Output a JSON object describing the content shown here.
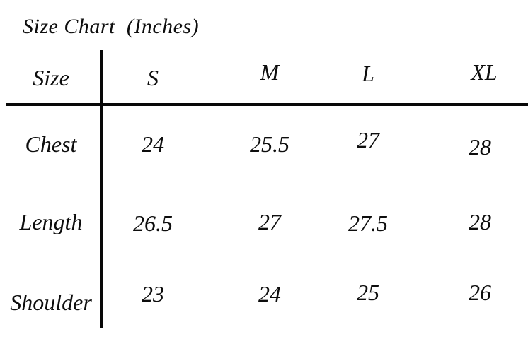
{
  "title": "Size Chart  (Inches)",
  "colors": {
    "background": "#ffffff",
    "text": "#0d0d0d",
    "line": "#080808"
  },
  "chart_data": {
    "type": "table",
    "title": "Size Chart (Inches)",
    "unit": "inches",
    "columns": [
      "Size",
      "S",
      "M",
      "L",
      "XL"
    ],
    "rows": [
      {
        "label": "Chest",
        "values": [
          24,
          25.5,
          27,
          28
        ]
      },
      {
        "label": "Length",
        "values": [
          26.5,
          27,
          27.5,
          28
        ]
      },
      {
        "label": "Shoulder",
        "values": [
          23,
          24,
          25,
          26
        ]
      }
    ]
  }
}
